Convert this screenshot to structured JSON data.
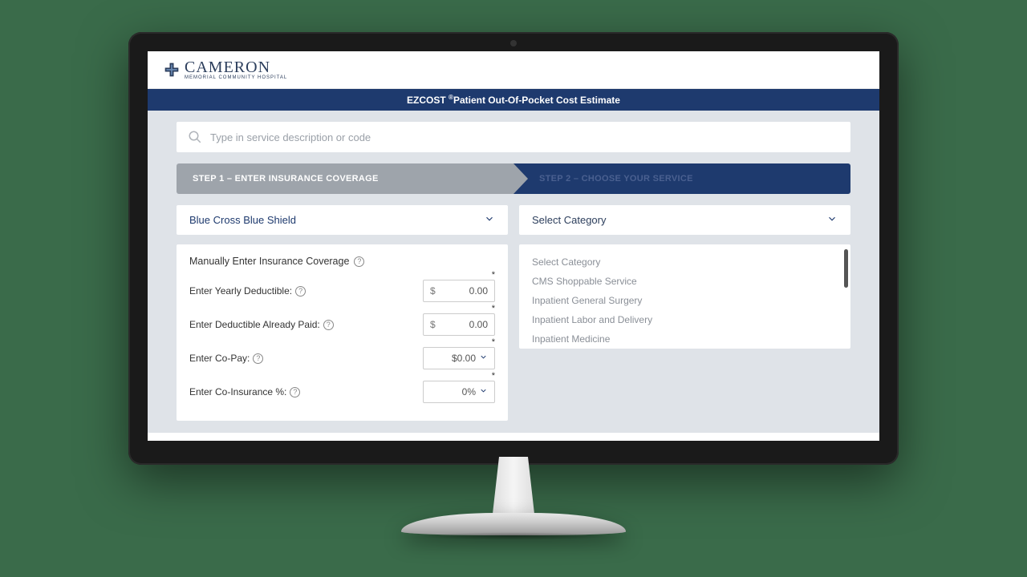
{
  "logo": {
    "main": "CAMERON",
    "sub": "Memorial Community Hospital"
  },
  "banner": {
    "prefix": "EZCOST ",
    "reg": "®",
    "suffix": "Patient Out-Of-Pocket Cost Estimate"
  },
  "search": {
    "placeholder": "Type in service description or code"
  },
  "steps": {
    "step1": "STEP 1 – ENTER INSURANCE COVERAGE",
    "step2": "STEP 2 – CHOOSE YOUR SERVICE"
  },
  "insurance_select": {
    "value": "Blue Cross Blue Shield"
  },
  "category_select": {
    "value": "Select Category"
  },
  "manual_panel": {
    "title": "Manually Enter Insurance Coverage",
    "fields": [
      {
        "label": "Enter Yearly Deductible:",
        "type": "money",
        "currency": "$",
        "value": "0.00"
      },
      {
        "label": "Enter Deductible Already Paid:",
        "type": "money",
        "currency": "$",
        "value": "0.00"
      },
      {
        "label": "Enter Co-Pay:",
        "type": "select",
        "value": "$0.00"
      },
      {
        "label": "Enter Co-Insurance %:",
        "type": "select",
        "value": "0%"
      }
    ]
  },
  "category_options": [
    "Select Category",
    "CMS Shoppable Service",
    "Inpatient General Surgery",
    "Inpatient Labor and Delivery",
    "Inpatient Medicine"
  ],
  "colors": {
    "page_bg": "#3a6b4a",
    "banner_bg": "#1e3a6e",
    "step_inactive_bg": "#9ea4ab",
    "step_active_bg": "#1e3a6e",
    "body_bg": "#dfe3e8",
    "text_primary": "#2c3e5c",
    "text_muted": "#8a8f97"
  }
}
